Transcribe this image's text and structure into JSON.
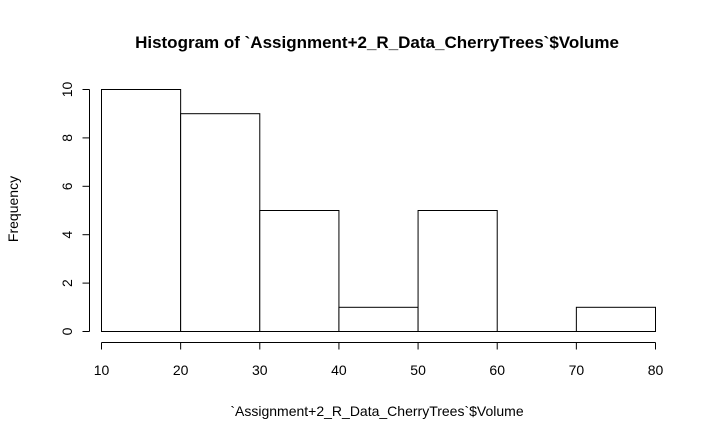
{
  "chart_data": {
    "type": "bar",
    "title": "Histogram of `Assignment+2_R_Data_CherryTrees`$Volume",
    "xlabel": "`Assignment+2_R_Data_CherryTrees`$Volume",
    "ylabel": "Frequency",
    "bins": [
      {
        "from": 10,
        "to": 20,
        "count": 10
      },
      {
        "from": 20,
        "to": 30,
        "count": 9
      },
      {
        "from": 30,
        "to": 40,
        "count": 5
      },
      {
        "from": 40,
        "to": 50,
        "count": 1
      },
      {
        "from": 50,
        "to": 60,
        "count": 5
      },
      {
        "from": 60,
        "to": 70,
        "count": 0
      },
      {
        "from": 70,
        "to": 80,
        "count": 1
      }
    ],
    "xlim": [
      10,
      80
    ],
    "ylim": [
      0,
      10
    ],
    "x_ticks": [
      "10",
      "20",
      "30",
      "40",
      "50",
      "60",
      "70",
      "80"
    ],
    "y_ticks": [
      "0",
      "2",
      "4",
      "6",
      "8",
      "10"
    ],
    "grid": false,
    "bar_fill": "#ffffff",
    "bar_stroke": "#000000"
  }
}
